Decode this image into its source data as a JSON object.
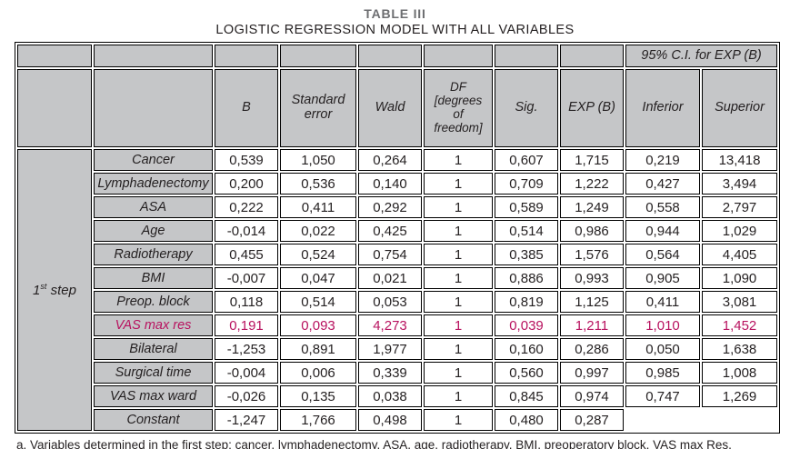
{
  "title": "TABLE III",
  "subtitle": "LOGISTIC REGRESSION MODEL WITH ALL VARIABLES",
  "table": {
    "ci_header": "95% C.I. for EXP (B)",
    "step_label": {
      "num": "1",
      "sup": "st",
      "rest": " step"
    },
    "columns": [
      "B",
      "Standard error",
      "Wald",
      "DF [degrees of freedom]",
      "Sig.",
      "EXP (B)",
      "Inferior",
      "Superior"
    ],
    "rows": [
      {
        "label": "Cancer",
        "highlight": false,
        "values": [
          "0,539",
          "1,050",
          "0,264",
          "1",
          "0,607",
          "1,715",
          "0,219",
          "13,418"
        ]
      },
      {
        "label": "Lymphadenectomy",
        "highlight": false,
        "values": [
          "0,200",
          "0,536",
          "0,140",
          "1",
          "0,709",
          "1,222",
          "0,427",
          "3,494"
        ]
      },
      {
        "label": "ASA",
        "highlight": false,
        "values": [
          "0,222",
          "0,411",
          "0,292",
          "1",
          "0,589",
          "1,249",
          "0,558",
          "2,797"
        ]
      },
      {
        "label": "Age",
        "highlight": false,
        "values": [
          "-0,014",
          "0,022",
          "0,425",
          "1",
          "0,514",
          "0,986",
          "0,944",
          "1,029"
        ]
      },
      {
        "label": "Radiotherapy",
        "highlight": false,
        "values": [
          "0,455",
          "0,524",
          "0,754",
          "1",
          "0,385",
          "1,576",
          "0,564",
          "4,405"
        ]
      },
      {
        "label": "BMI",
        "highlight": false,
        "values": [
          "-0,007",
          "0,047",
          "0,021",
          "1",
          "0,886",
          "0,993",
          "0,905",
          "1,090"
        ]
      },
      {
        "label": "Preop. block",
        "highlight": false,
        "values": [
          "0,118",
          "0,514",
          "0,053",
          "1",
          "0,819",
          "1,125",
          "0,411",
          "3,081"
        ]
      },
      {
        "label": "VAS max res",
        "highlight": true,
        "values": [
          "0,191",
          "0,093",
          "4,273",
          "1",
          "0,039",
          "1,211",
          "1,010",
          "1,452"
        ]
      },
      {
        "label": "Bilateral",
        "highlight": false,
        "values": [
          "-1,253",
          "0,891",
          "1,977",
          "1",
          "0,160",
          "0,286",
          "0,050",
          "1,638"
        ]
      },
      {
        "label": "Surgical time",
        "highlight": false,
        "values": [
          "-0,004",
          "0,006",
          "0,339",
          "1",
          "0,560",
          "0,997",
          "0,985",
          "1,008"
        ]
      },
      {
        "label": "VAS max ward",
        "highlight": false,
        "values": [
          "-0,026",
          "0,135",
          "0,038",
          "1",
          "0,845",
          "0,974",
          "0,747",
          "1,269"
        ]
      },
      {
        "label": "Constant",
        "highlight": false,
        "values": [
          "-1,247",
          "1,766",
          "0,498",
          "1",
          "0,480",
          "0,287",
          "",
          ""
        ]
      }
    ]
  },
  "footnote": "a. Variables determined in the first step: cancer, lymphadenectomy, ASA, age, radiotherapy, BMI, preoperatory block, VAS max Res, bilateral, surgical time, VAS max ward."
}
